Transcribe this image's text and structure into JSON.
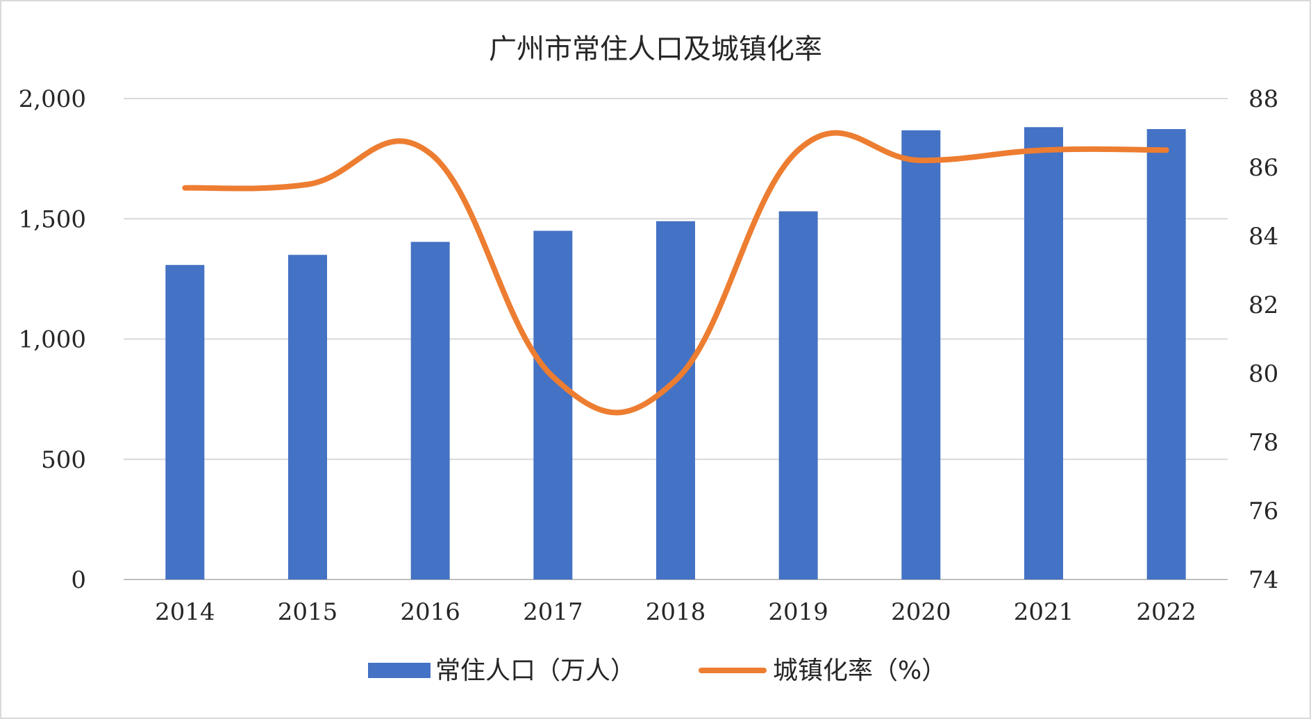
{
  "chart_data": {
    "type": "bar",
    "title": "广州市常住人口及城镇化率",
    "categories": [
      "2014",
      "2015",
      "2016",
      "2017",
      "2018",
      "2019",
      "2020",
      "2021",
      "2022"
    ],
    "series": [
      {
        "name": "常住人口（万人）",
        "type": "bar",
        "axis": "left",
        "color": "#4472C4",
        "values": [
          1308,
          1350,
          1404,
          1450,
          1490,
          1531,
          1868,
          1881,
          1873
        ]
      },
      {
        "name": "城镇化率（%）",
        "type": "line",
        "axis": "right",
        "color": "#ED7D31",
        "smooth": true,
        "values": [
          85.4,
          85.5,
          86.4,
          79.9,
          79.8,
          86.5,
          86.2,
          86.5,
          86.5
        ]
      }
    ],
    "y_left": {
      "min": 0,
      "max": 2000,
      "ticks": [
        0,
        500,
        1000,
        1500,
        2000
      ],
      "tick_labels": [
        "0",
        "500",
        "1,000",
        "1,500",
        "2,000"
      ]
    },
    "y_right": {
      "min": 74,
      "max": 88,
      "ticks": [
        74,
        76,
        78,
        80,
        82,
        84,
        86,
        88
      ],
      "tick_labels": [
        "74",
        "76",
        "78",
        "80",
        "82",
        "84",
        "86",
        "88"
      ]
    },
    "grid": true,
    "legend": "bottom"
  }
}
